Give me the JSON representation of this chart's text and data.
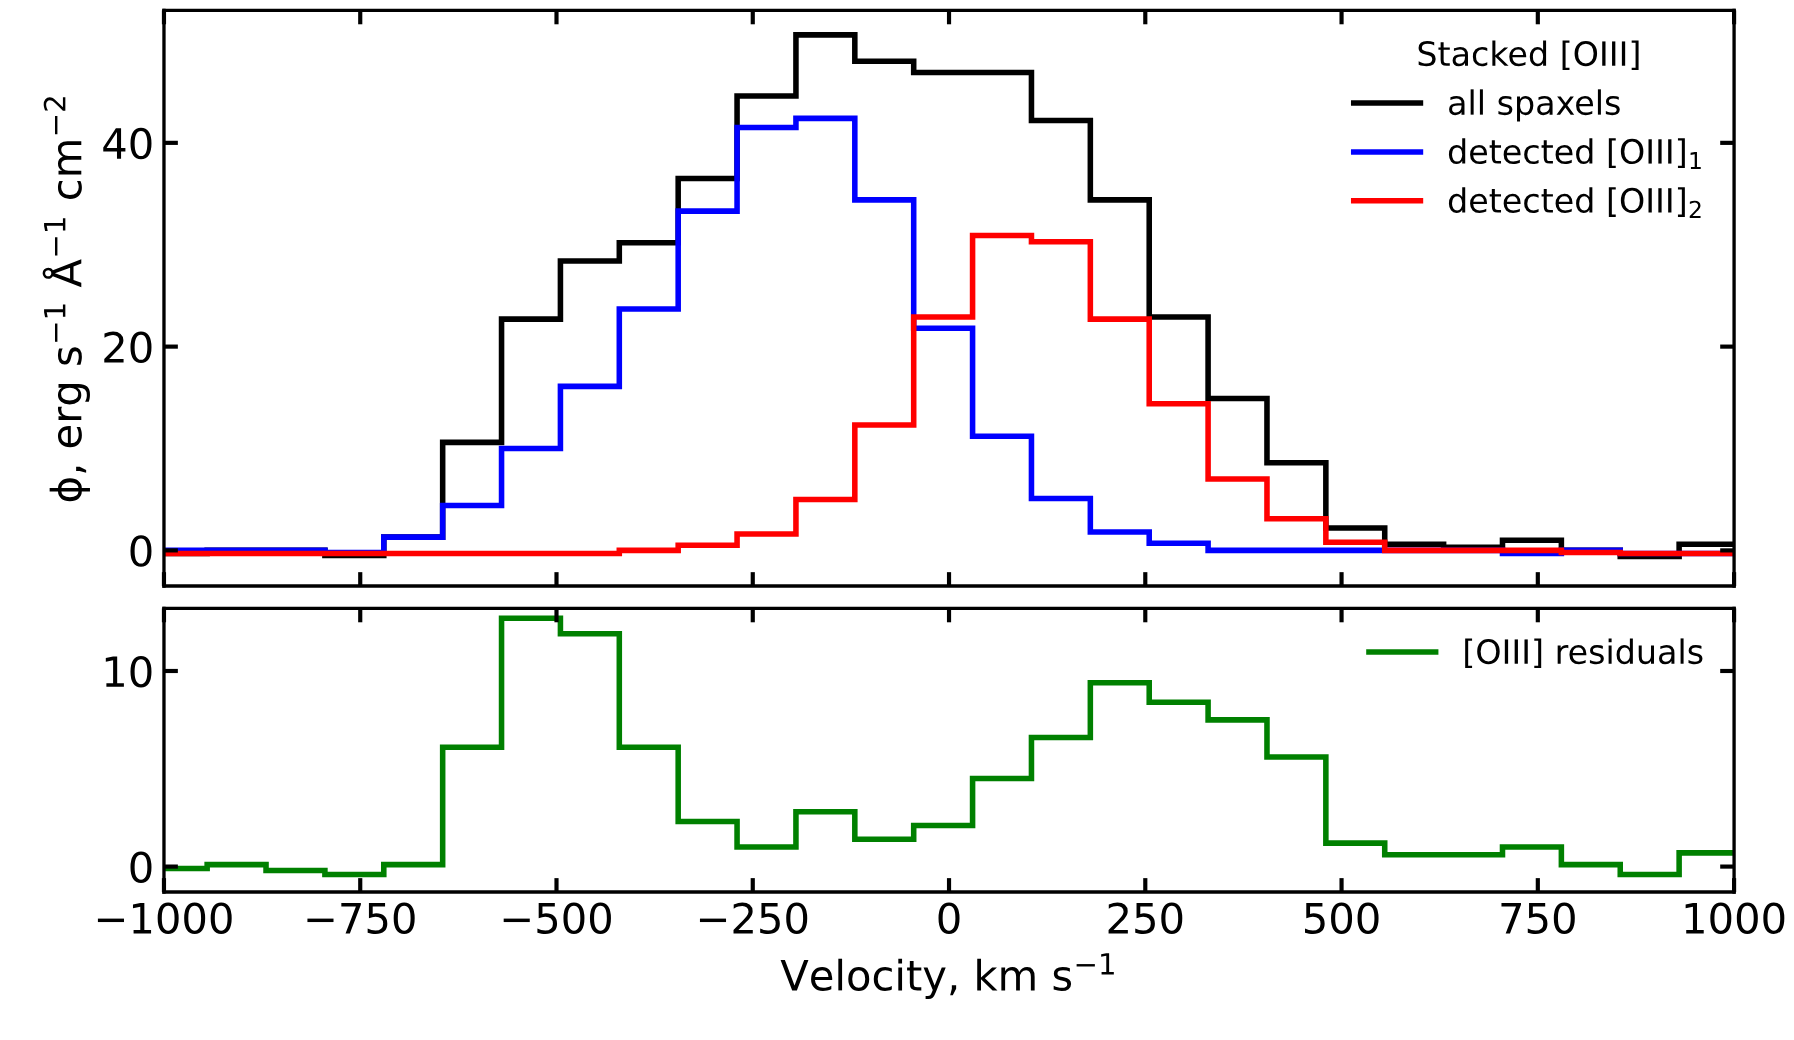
{
  "chart_data": [
    {
      "type": "histogram",
      "ylabel": "ϕ, erg s$^{−1}$ Å$^{−1}$ cm$^{−2}$",
      "legend_title": "Stacked [OIII]",
      "legend": "top right",
      "grid": false,
      "tick_labels": "y",
      "bins": [
        -1020,
        -945,
        -870,
        -795,
        -720,
        -645,
        -570,
        -495,
        -420,
        -345,
        -270,
        -195,
        -120,
        -45,
        30,
        105,
        180,
        255,
        330,
        405,
        480,
        555,
        630,
        705,
        780,
        855,
        930,
        1005
      ],
      "xlim": [
        -1000,
        1000
      ],
      "xticks": [
        {
          "value": -1000,
          "label": null
        },
        {
          "value": -750,
          "label": null
        },
        {
          "value": -500,
          "label": null
        },
        {
          "value": -250,
          "label": null
        },
        {
          "value": 0,
          "label": null
        },
        {
          "value": 250,
          "label": null
        },
        {
          "value": 500,
          "label": null
        },
        {
          "value": 750,
          "label": null
        },
        {
          "value": 1000,
          "label": null
        }
      ],
      "ylim": [
        -3.5,
        53
      ],
      "yticks": [
        0,
        20,
        40
      ],
      "series": [
        {
          "name": "all spaxels",
          "color": "#000000",
          "values": [
            -0.3,
            0.0,
            0.0,
            -0.5,
            1.3,
            10.6,
            22.7,
            28.4,
            30.2,
            36.5,
            44.6,
            50.6,
            48.0,
            46.9,
            46.9,
            42.2,
            34.4,
            22.9,
            14.9,
            8.6,
            2.2,
            0.6,
            0.3,
            1.0,
            0.0,
            -0.6,
            0.6
          ]
        },
        {
          "name": "detected [OIII]$_{1}$",
          "color": "#0000ff",
          "values": [
            0.0,
            0.0,
            0.0,
            -0.2,
            1.3,
            4.4,
            10.0,
            16.1,
            23.7,
            33.3,
            41.5,
            42.4,
            34.4,
            21.8,
            11.2,
            5.1,
            1.8,
            0.7,
            0.0,
            0.0,
            0.0,
            0.0,
            0.0,
            -0.3,
            0.0,
            -0.3,
            -0.3
          ]
        },
        {
          "name": "detected [OIII]$_{2}$",
          "color": "#ff0000",
          "values": [
            -0.3,
            -0.3,
            -0.3,
            -0.3,
            -0.3,
            -0.3,
            -0.3,
            -0.3,
            0.0,
            0.5,
            1.6,
            5.0,
            12.3,
            22.9,
            30.9,
            30.3,
            22.7,
            14.4,
            7.0,
            3.1,
            0.8,
            0.0,
            0.0,
            0.0,
            -0.2,
            -0.3,
            -0.3
          ]
        }
      ]
    },
    {
      "type": "histogram",
      "xlabel": "Velocity, km s$^{−1}$",
      "legend": "top right",
      "grid": false,
      "bins": [
        -1020,
        -945,
        -870,
        -795,
        -720,
        -645,
        -570,
        -495,
        -420,
        -345,
        -270,
        -195,
        -120,
        -45,
        30,
        105,
        180,
        255,
        330,
        405,
        480,
        555,
        630,
        705,
        780,
        855,
        930,
        1005
      ],
      "xlim": [
        -1000,
        1000
      ],
      "xticks": [
        -1000,
        -750,
        -500,
        -250,
        0,
        250,
        500,
        750,
        1000
      ],
      "ylim": [
        -1.3,
        13.2
      ],
      "yticks": [
        0,
        10
      ],
      "series": [
        {
          "name": "[OIII] residuals",
          "color": "#008000",
          "values": [
            -0.1,
            0.1,
            -0.2,
            -0.4,
            0.1,
            6.1,
            12.7,
            11.9,
            6.1,
            2.3,
            1.0,
            2.8,
            1.4,
            2.1,
            4.5,
            6.6,
            9.4,
            8.4,
            7.5,
            5.6,
            1.2,
            0.6,
            0.6,
            1.0,
            0.1,
            -0.4,
            0.7
          ]
        }
      ]
    }
  ]
}
